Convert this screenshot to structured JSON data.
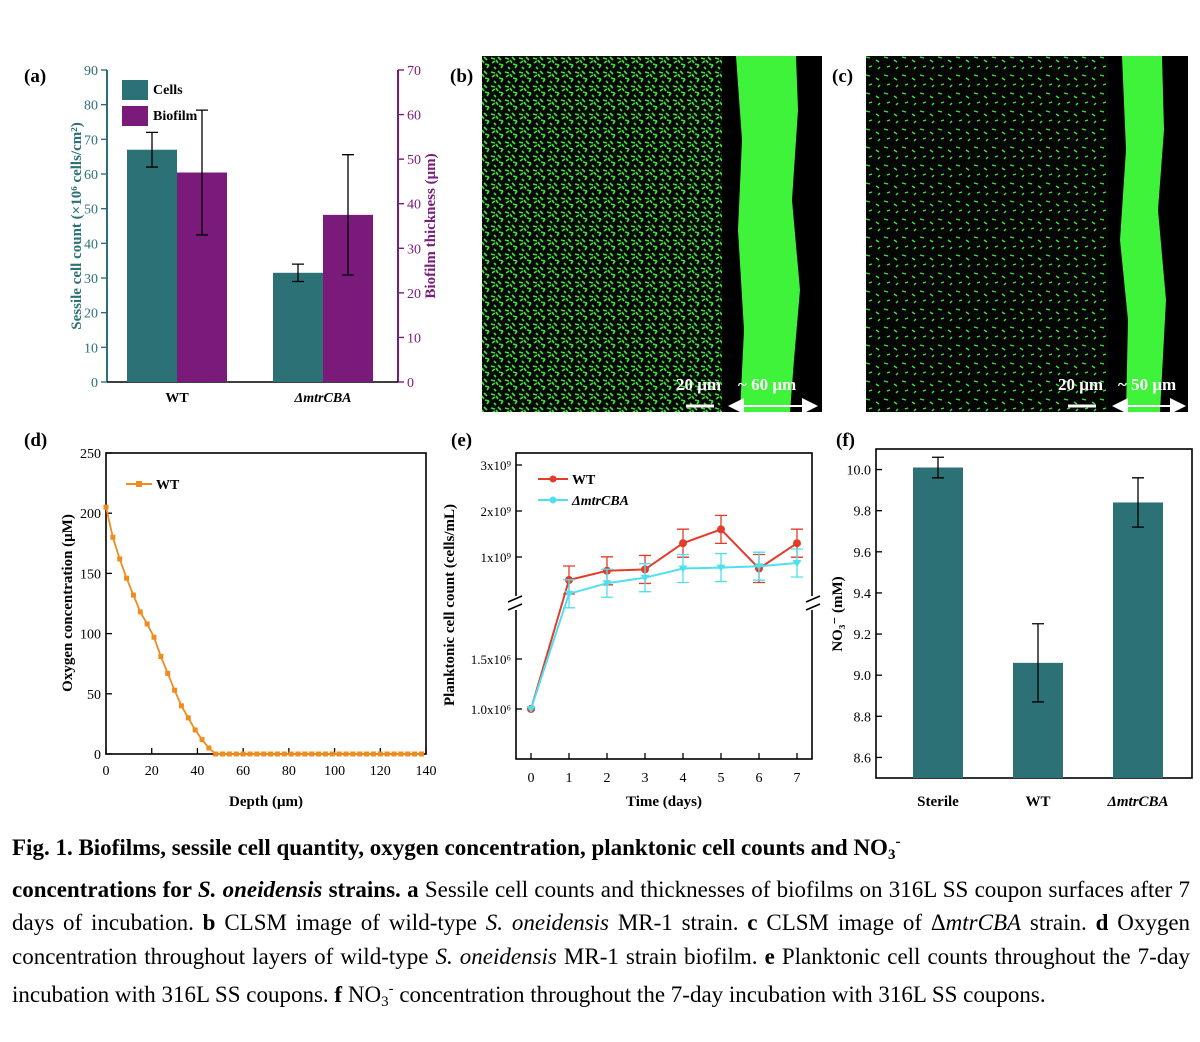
{
  "panels": {
    "a": {
      "label": "(a)",
      "ylabel_left": "Sessile cell count (×10⁶ cells/cm²)",
      "ylabel_right": "Biofilm thickness (μm)"
    },
    "b": {
      "label": "(b)",
      "scale_label": "20 μm",
      "thickness_label": "~ 60 μm"
    },
    "c": {
      "label": "(c)",
      "scale_label": "20 μm",
      "thickness_label": "~ 50 μm"
    },
    "d": {
      "label": "(d)"
    },
    "e": {
      "label": "(e)"
    },
    "f": {
      "label": "(f)"
    }
  },
  "chart_data": [
    {
      "panel": "a",
      "type": "bar",
      "categories": [
        "WT",
        "ΔmtrCBA"
      ],
      "series": [
        {
          "name": "Cells",
          "axis": "left",
          "values": [
            67,
            31.5
          ],
          "errors": [
            5,
            2.5
          ],
          "color": "#2c7176"
        },
        {
          "name": "Biofilm",
          "axis": "right",
          "values": [
            47,
            37.5
          ],
          "errors": [
            14,
            13.5
          ],
          "color": "#7a1a7a"
        }
      ],
      "xlabel": "",
      "ylabel": "Sessile cell count (×10⁶ cells/cm²)",
      "ylabel_right": "Biofilm thickness (μm)",
      "ylim": [
        0,
        90
      ],
      "ylim_right": [
        0,
        70
      ],
      "yticks": [
        0,
        10,
        20,
        30,
        40,
        50,
        60,
        70,
        80,
        90
      ],
      "yticks_right": [
        0,
        10,
        20,
        30,
        40,
        50,
        60,
        70
      ],
      "legend": "top-left"
    },
    {
      "panel": "d",
      "type": "line",
      "series": [
        {
          "name": "WT",
          "color": "#f08c1e",
          "x": [
            0,
            3,
            6,
            9,
            12,
            15,
            18,
            21,
            24,
            27,
            30,
            33,
            36,
            39,
            42,
            45,
            48,
            51,
            54,
            57,
            60,
            63,
            66,
            69,
            72,
            75,
            78,
            81,
            84,
            87,
            90,
            93,
            96,
            99,
            102,
            105,
            108,
            111,
            114,
            117,
            120,
            123,
            126,
            129,
            132,
            135,
            138
          ],
          "y": [
            205,
            180,
            162,
            146,
            132,
            118,
            108,
            97,
            81,
            67,
            53,
            40,
            30,
            20,
            12,
            5,
            0,
            0,
            0,
            0,
            0,
            0,
            0,
            0,
            0,
            0,
            0,
            0,
            0,
            0,
            0,
            0,
            0,
            0,
            0,
            0,
            0,
            0,
            0,
            0,
            0,
            0,
            0,
            0,
            0,
            0,
            0
          ]
        }
      ],
      "xlabel": "Depth (μm)",
      "ylabel": "Oxygen concentration (μM)",
      "xlim": [
        0,
        140
      ],
      "ylim": [
        0,
        250
      ],
      "xticks": [
        0,
        20,
        40,
        60,
        80,
        100,
        120,
        140
      ],
      "yticks": [
        0,
        50,
        100,
        150,
        200,
        250
      ],
      "legend": "top-left"
    },
    {
      "panel": "e",
      "type": "line",
      "x": [
        0,
        1,
        2,
        3,
        4,
        5,
        6,
        7
      ],
      "series": [
        {
          "name": "WT",
          "color": "#e23d2a",
          "values": [
            "1.0x10⁶",
            "5x10⁸",
            "7x10⁸",
            "7.3x10⁸",
            "1.3x10⁹",
            "1.6x10⁹",
            "7.5x10⁸",
            "1.3x10⁹"
          ]
        },
        {
          "name": "ΔmtrCBA",
          "color": "#4ee0f0",
          "values": [
            "1.0x10⁶",
            "2x10⁸",
            "4.3x10⁸",
            "5.5x10⁸",
            "7.5x10⁸",
            "7.7x10⁸",
            "8x10⁸",
            "8.7x10⁸"
          ]
        }
      ],
      "xlabel": "Time (days)",
      "ylabel": "Planktonic cell count (cells/mL)",
      "broken_axis": true,
      "yticks_upper": [
        "1x10⁹",
        "2x10⁹",
        "3x10⁹"
      ],
      "yticks_lower": [
        "1.0x10⁶",
        "1.5x10⁶"
      ],
      "xticks": [
        0,
        1,
        2,
        3,
        4,
        5,
        6,
        7
      ],
      "legend": "top-left"
    },
    {
      "panel": "f",
      "type": "bar",
      "categories": [
        "Sterile",
        "WT",
        "ΔmtrCBA"
      ],
      "values": [
        10.01,
        9.06,
        9.84
      ],
      "errors": [
        0.05,
        0.19,
        0.12
      ],
      "color": "#2c7176",
      "xlabel": "",
      "ylabel": "NO₃⁻ (mM)",
      "ylim": [
        8.5,
        10.1
      ],
      "yticks": [
        8.6,
        8.8,
        9.0,
        9.2,
        9.4,
        9.6,
        9.8,
        10.0
      ]
    }
  ],
  "caption": {
    "bold_title": "Fig. 1. Biofilms, sessile cell quantity, oxygen concentration, planktonic cell counts and NO",
    "bold_sub": "3",
    "bold_sup": "-",
    "bold_line2": "concentrations for ",
    "bold_species": "S. oneidensis",
    "bold_end": " strains.",
    "a_label": "a",
    "a_text": "Sessile cell counts and thicknesses of biofilms on 316L SS coupon surfaces after 7 days of incubation.",
    "b_label": "b",
    "b_text1": "CLSM image of wild-type ",
    "b_species": "S. oneidensis",
    "b_text2": " MR-1 strain.",
    "c_label": "c",
    "c_text1": "CLSM image of Δ",
    "c_strain": "mtrCBA",
    "c_text2": " strain.",
    "d_label": "d",
    "d_text1": "Oxygen concentration throughout layers of wild-type ",
    "d_species": "S. oneidensis",
    "d_text2": " MR-1 strain biofilm.",
    "e_label": "e",
    "e_text": "Planktonic cell counts throughout the 7-day incubation with 316L SS coupons.",
    "f_label": "f",
    "f_text1": "NO",
    "f_sub": "3",
    "f_sup": "-",
    "f_text2": " concentration throughout the 7-day incubation with 316L SS coupons."
  }
}
